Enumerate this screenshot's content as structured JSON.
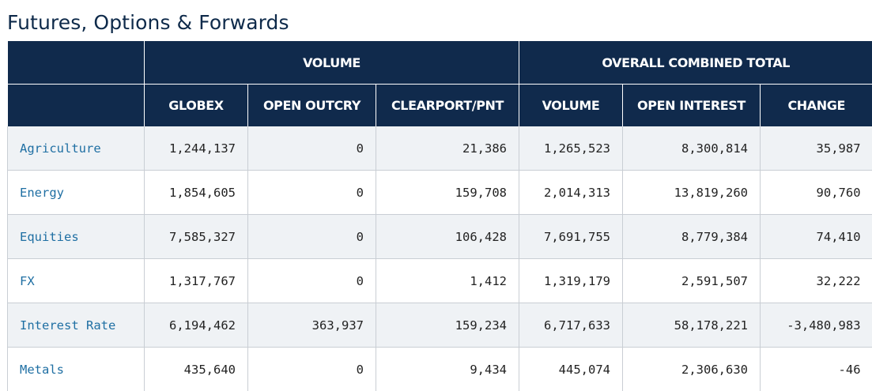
{
  "title": "Futures, Options & Forwards",
  "header": {
    "group_row": {
      "volume": "VOLUME",
      "overall": "OVERALL COMBINED TOTAL"
    },
    "columns": {
      "globex": "GLOBEX",
      "open_outcry": "OPEN OUTCRY",
      "clearport": "CLEARPORT/PNT",
      "volume": "VOLUME",
      "open_interest": "OPEN INTEREST",
      "change": "CHANGE"
    }
  },
  "rows": [
    {
      "label": "Agriculture",
      "globex": "1,244,137",
      "open_outcry": "0",
      "clearport": "21,386",
      "volume": "1,265,523",
      "open_interest": "8,300,814",
      "change": "35,987"
    },
    {
      "label": "Energy",
      "globex": "1,854,605",
      "open_outcry": "0",
      "clearport": "159,708",
      "volume": "2,014,313",
      "open_interest": "13,819,260",
      "change": "90,760"
    },
    {
      "label": "Equities",
      "globex": "7,585,327",
      "open_outcry": "0",
      "clearport": "106,428",
      "volume": "7,691,755",
      "open_interest": "8,779,384",
      "change": "74,410"
    },
    {
      "label": "FX",
      "globex": "1,317,767",
      "open_outcry": "0",
      "clearport": "1,412",
      "volume": "1,319,179",
      "open_interest": "2,591,507",
      "change": "32,222"
    },
    {
      "label": "Interest Rate",
      "globex": "6,194,462",
      "open_outcry": "363,937",
      "clearport": "159,234",
      "volume": "6,717,633",
      "open_interest": "58,178,221",
      "change": "-3,480,983"
    },
    {
      "label": "Metals",
      "globex": "435,640",
      "open_outcry": "0",
      "clearport": "9,434",
      "volume": "445,074",
      "open_interest": "2,306,630",
      "change": "-46"
    }
  ]
}
